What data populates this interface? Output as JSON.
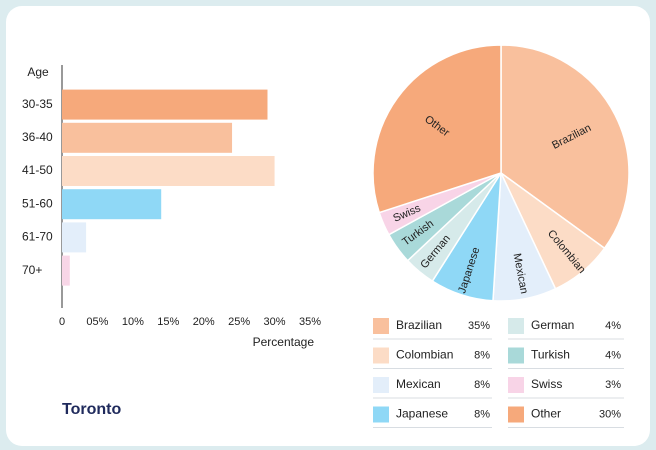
{
  "chart_data": [
    {
      "type": "bar",
      "orientation": "horizontal",
      "title": "Toronto",
      "ylabel": "Age",
      "xlabel": "Percentage",
      "categories": [
        "30-35",
        "36-40",
        "41-50",
        "51-60",
        "61-70",
        "70+"
      ],
      "values": [
        29,
        24,
        30,
        14,
        3.4,
        1.1
      ],
      "colors": [
        "#f6a97b",
        "#f9c09d",
        "#fcdcc6",
        "#8fd8f6",
        "#e3eefa",
        "#f8d6e7"
      ],
      "xlim": [
        0,
        35
      ],
      "xticks": [
        0,
        {
          "value": 5,
          "label": "05%"
        },
        {
          "value": 10,
          "label": "10%"
        },
        {
          "value": 15,
          "label": "15%"
        },
        {
          "value": 20,
          "label": "20%"
        },
        {
          "value": 25,
          "label": "25%"
        },
        {
          "value": 30,
          "label": "30%"
        },
        {
          "value": 35,
          "label": "35%"
        }
      ]
    },
    {
      "type": "pie",
      "categories": [
        "Brazilian",
        "Colombian",
        "Mexican",
        "Japanese",
        "German",
        "Turkish",
        "Swiss",
        "Other"
      ],
      "values": [
        35,
        8,
        8,
        8,
        4,
        4,
        3,
        30
      ],
      "value_labels": [
        "35%",
        "8%",
        "8%",
        "8%",
        "4%",
        "4%",
        "3%",
        "30%"
      ],
      "colors": [
        "#f9c09d",
        "#fcdcc6",
        "#e3eefa",
        "#8fd8f6",
        "#d6eaea",
        "#a9d9d9",
        "#f8d4e7",
        "#f6a97b"
      ]
    }
  ]
}
